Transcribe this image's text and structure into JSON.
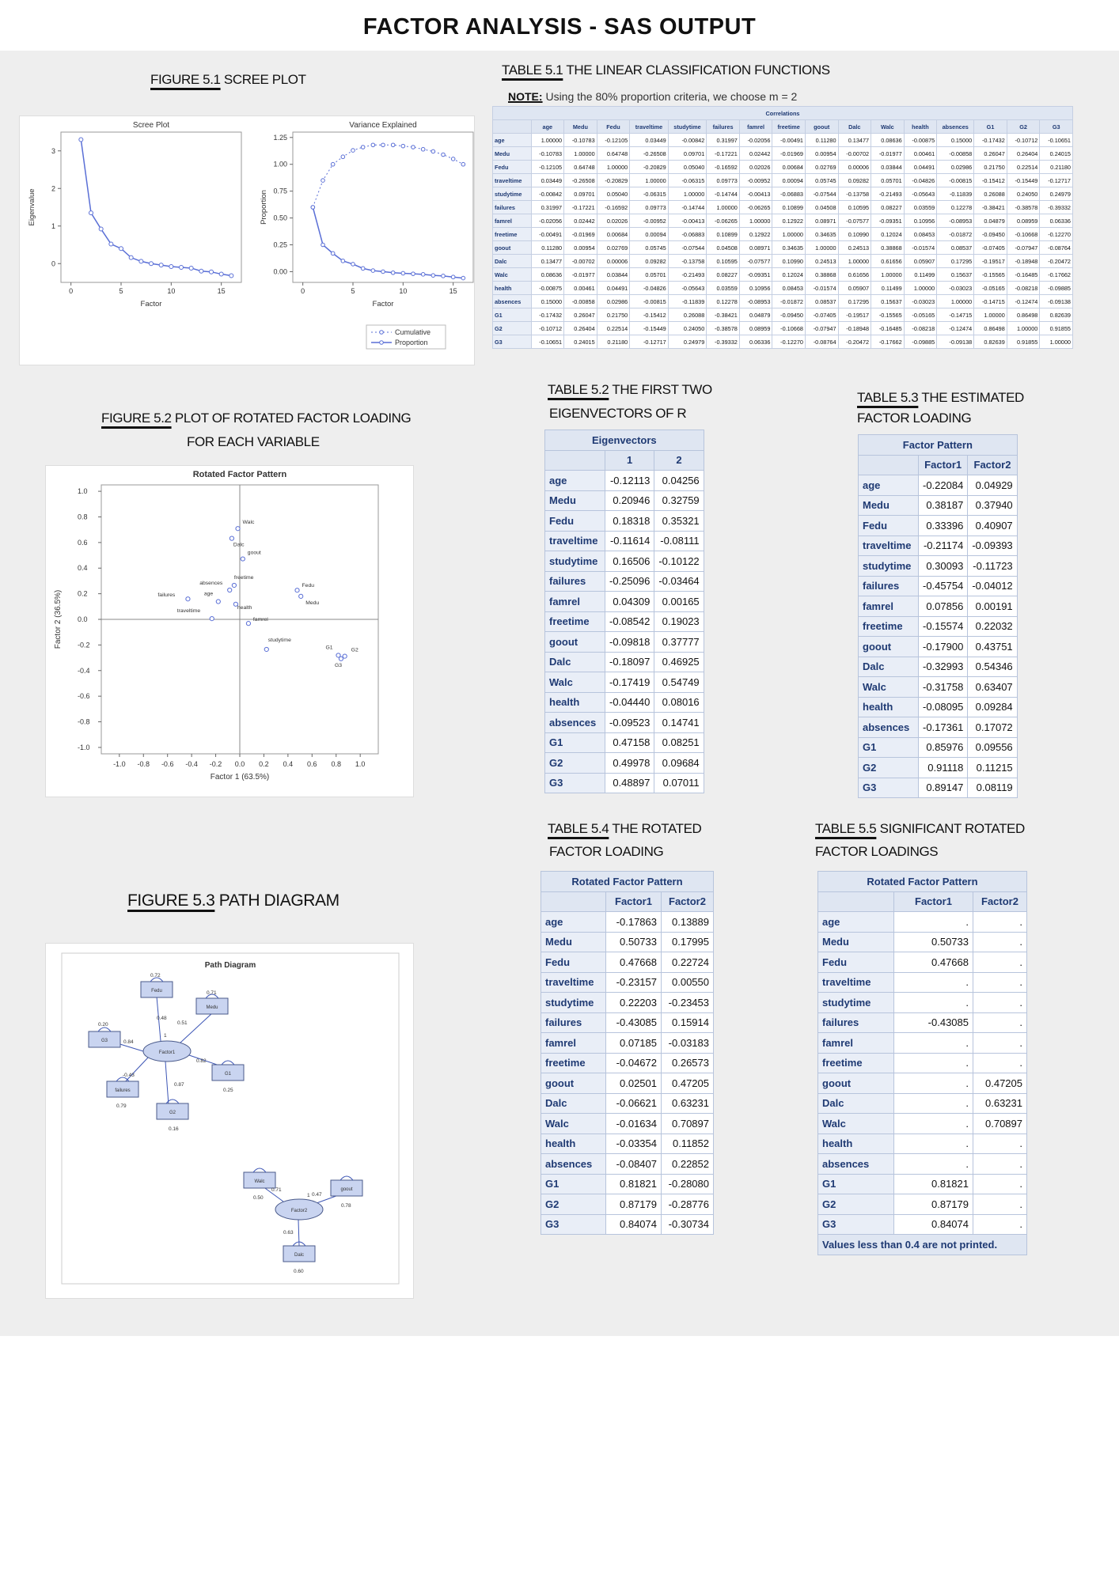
{
  "page_title": "FACTOR ANALYSIS  - SAS OUTPUT",
  "captions": {
    "fig51_num": "FIGURE  5.1",
    "fig51_text": " SCREE PLOT",
    "t51_num": "TABLE 5.1",
    "t51_text": " THE LINEAR CLASSIFICATION FUNCTIONS",
    "note_label": "NOTE:",
    "note_text": " Using the 80% proportion criteria, we choose m = 2",
    "t52_num": "TABLE 5.2",
    "t52_text": "  THE FIRST TWO",
    "t52_line2": "EIGENVECTORS OF R",
    "t53_num": "TABLE 5.3",
    "t53_text": "   THE ESTIMATED",
    "t53_line2": "FACTOR LOADING",
    "fig52_num": "FIGURE  5.2",
    "fig52_text": "  PLOT OF ROTATED FACTOR LOADING",
    "fig52_line2": "FOR EACH VARIABLE",
    "t54_num": "TABLE 5.4",
    "t54_text": "  THE  ROTATED",
    "t54_line2": "FACTOR LOADING",
    "t55_num": "TABLE 5.5",
    "t55_text": " SIGNIFICANT ROTATED",
    "t55_line2": "FACTOR LOADINGS",
    "fig53_num": "FIGURE  5.3",
    "fig53_text": " PATH DIAGRAM"
  },
  "variables": [
    "age",
    "Medu",
    "Fedu",
    "traveltime",
    "studytime",
    "failures",
    "famrel",
    "freetime",
    "goout",
    "Dalc",
    "Walc",
    "health",
    "absences",
    "G1",
    "G2",
    "G3"
  ],
  "correlations": {
    "title": "Correlations",
    "rows": [
      [
        "1.00000",
        "-0.10783",
        "-0.12105",
        "0.03449",
        "-0.00842",
        "0.31997",
        "-0.02056",
        "-0.00491",
        "0.11280",
        "0.13477",
        "0.08636",
        "-0.00875",
        "0.15000",
        "-0.17432",
        "-0.10712",
        "-0.10651"
      ],
      [
        "-0.10783",
        "1.00000",
        "0.64748",
        "-0.26508",
        "0.09701",
        "-0.17221",
        "0.02442",
        "-0.01969",
        "0.00954",
        "-0.00702",
        "-0.01977",
        "0.00461",
        "-0.00858",
        "0.26047",
        "0.26404",
        "0.24015"
      ],
      [
        "-0.12105",
        "0.64748",
        "1.00000",
        "-0.20829",
        "0.05040",
        "-0.16592",
        "0.02026",
        "0.00684",
        "0.02769",
        "0.00006",
        "0.03844",
        "0.04491",
        "0.02986",
        "0.21750",
        "0.22514",
        "0.21180"
      ],
      [
        "0.03449",
        "-0.26508",
        "-0.20829",
        "1.00000",
        "-0.06315",
        "0.09773",
        "-0.00952",
        "0.00094",
        "0.05745",
        "0.09282",
        "0.05701",
        "-0.04826",
        "-0.00815",
        "-0.15412",
        "-0.15449",
        "-0.12717"
      ],
      [
        "-0.00842",
        "0.09701",
        "0.05040",
        "-0.06315",
        "1.00000",
        "-0.14744",
        "-0.00413",
        "-0.06883",
        "-0.07544",
        "-0.13758",
        "-0.21493",
        "-0.05643",
        "-0.11839",
        "0.26088",
        "0.24050",
        "0.24979"
      ],
      [
        "0.31997",
        "-0.17221",
        "-0.16592",
        "0.09773",
        "-0.14744",
        "1.00000",
        "-0.06265",
        "0.10899",
        "0.04508",
        "0.10595",
        "0.08227",
        "0.03559",
        "0.12278",
        "-0.38421",
        "-0.38578",
        "-0.39332"
      ],
      [
        "-0.02056",
        "0.02442",
        "0.02026",
        "-0.00952",
        "-0.00413",
        "-0.06265",
        "1.00000",
        "0.12922",
        "0.08971",
        "-0.07577",
        "-0.09351",
        "0.10956",
        "-0.08953",
        "0.04879",
        "0.08959",
        "0.06336"
      ],
      [
        "-0.00491",
        "-0.01969",
        "0.00684",
        "0.00094",
        "-0.06883",
        "0.10899",
        "0.12922",
        "1.00000",
        "0.34635",
        "0.10990",
        "0.12024",
        "0.08453",
        "-0.01872",
        "-0.09450",
        "-0.10668",
        "-0.12270"
      ],
      [
        "0.11280",
        "0.00954",
        "0.02769",
        "0.05745",
        "-0.07544",
        "0.04508",
        "0.08971",
        "0.34635",
        "1.00000",
        "0.24513",
        "0.38868",
        "-0.01574",
        "0.08537",
        "-0.07405",
        "-0.07947",
        "-0.08764"
      ],
      [
        "0.13477",
        "-0.00702",
        "0.00006",
        "0.09282",
        "-0.13758",
        "0.10595",
        "-0.07577",
        "0.10990",
        "0.24513",
        "1.00000",
        "0.61656",
        "0.05907",
        "0.17295",
        "-0.19517",
        "-0.18948",
        "-0.20472"
      ],
      [
        "0.08636",
        "-0.01977",
        "0.03844",
        "0.05701",
        "-0.21493",
        "0.08227",
        "-0.09351",
        "0.12024",
        "0.38868",
        "0.61656",
        "1.00000",
        "0.11499",
        "0.15637",
        "-0.15565",
        "-0.16485",
        "-0.17662"
      ],
      [
        "-0.00875",
        "0.00461",
        "0.04491",
        "-0.04826",
        "-0.05643",
        "0.03559",
        "0.10956",
        "0.08453",
        "-0.01574",
        "0.05907",
        "0.11499",
        "1.00000",
        "-0.03023",
        "-0.05165",
        "-0.08218",
        "-0.09885"
      ],
      [
        "0.15000",
        "-0.00858",
        "0.02986",
        "-0.00815",
        "-0.11839",
        "0.12278",
        "-0.08953",
        "-0.01872",
        "0.08537",
        "0.17295",
        "0.15637",
        "-0.03023",
        "1.00000",
        "-0.14715",
        "-0.12474",
        "-0.09138"
      ],
      [
        "-0.17432",
        "0.26047",
        "0.21750",
        "-0.15412",
        "0.26088",
        "-0.38421",
        "0.04879",
        "-0.09450",
        "-0.07405",
        "-0.19517",
        "-0.15565",
        "-0.05165",
        "-0.14715",
        "1.00000",
        "0.86498",
        "0.82639"
      ],
      [
        "-0.10712",
        "0.26404",
        "0.22514",
        "-0.15449",
        "0.24050",
        "-0.38578",
        "0.08959",
        "-0.10668",
        "-0.07947",
        "-0.18948",
        "-0.16485",
        "-0.08218",
        "-0.12474",
        "0.86498",
        "1.00000",
        "0.91855"
      ],
      [
        "-0.10651",
        "0.24015",
        "0.21180",
        "-0.12717",
        "0.24979",
        "-0.39332",
        "0.06336",
        "-0.12270",
        "-0.08764",
        "-0.20472",
        "-0.17662",
        "-0.09885",
        "-0.09138",
        "0.82639",
        "0.91855",
        "1.00000"
      ]
    ]
  },
  "eigenvectors": {
    "title": "Eigenvectors",
    "cols": [
      "1",
      "2"
    ],
    "rows": [
      [
        "-0.12113",
        "0.04256"
      ],
      [
        "0.20946",
        "0.32759"
      ],
      [
        "0.18318",
        "0.35321"
      ],
      [
        "-0.11614",
        "-0.08111"
      ],
      [
        "0.16506",
        "-0.10122"
      ],
      [
        "-0.25096",
        "-0.03464"
      ],
      [
        "0.04309",
        "0.00165"
      ],
      [
        "-0.08542",
        "0.19023"
      ],
      [
        "-0.09818",
        "0.37777"
      ],
      [
        "-0.18097",
        "0.46925"
      ],
      [
        "-0.17419",
        "0.54749"
      ],
      [
        "-0.04440",
        "0.08016"
      ],
      [
        "-0.09523",
        "0.14741"
      ],
      [
        "0.47158",
        "0.08251"
      ],
      [
        "0.49978",
        "0.09684"
      ],
      [
        "0.48897",
        "0.07011"
      ]
    ]
  },
  "factor_pattern": {
    "title": "Factor Pattern",
    "cols": [
      "Factor1",
      "Factor2"
    ],
    "rows": [
      [
        "-0.22084",
        "0.04929"
      ],
      [
        "0.38187",
        "0.37940"
      ],
      [
        "0.33396",
        "0.40907"
      ],
      [
        "-0.21174",
        "-0.09393"
      ],
      [
        "0.30093",
        "-0.11723"
      ],
      [
        "-0.45754",
        "-0.04012"
      ],
      [
        "0.07856",
        "0.00191"
      ],
      [
        "-0.15574",
        "0.22032"
      ],
      [
        "-0.17900",
        "0.43751"
      ],
      [
        "-0.32993",
        "0.54346"
      ],
      [
        "-0.31758",
        "0.63407"
      ],
      [
        "-0.08095",
        "0.09284"
      ],
      [
        "-0.17361",
        "0.17072"
      ],
      [
        "0.85976",
        "0.09556"
      ],
      [
        "0.91118",
        "0.11215"
      ],
      [
        "0.89147",
        "0.08119"
      ]
    ]
  },
  "rotated_pattern": {
    "title": "Rotated Factor Pattern",
    "cols": [
      "Factor1",
      "Factor2"
    ],
    "rows": [
      [
        "-0.17863",
        "0.13889"
      ],
      [
        "0.50733",
        "0.17995"
      ],
      [
        "0.47668",
        "0.22724"
      ],
      [
        "-0.23157",
        "0.00550"
      ],
      [
        "0.22203",
        "-0.23453"
      ],
      [
        "-0.43085",
        "0.15914"
      ],
      [
        "0.07185",
        "-0.03183"
      ],
      [
        "-0.04672",
        "0.26573"
      ],
      [
        "0.02501",
        "0.47205"
      ],
      [
        "-0.06621",
        "0.63231"
      ],
      [
        "-0.01634",
        "0.70897"
      ],
      [
        "-0.03354",
        "0.11852"
      ],
      [
        "-0.08407",
        "0.22852"
      ],
      [
        "0.81821",
        "-0.28080"
      ],
      [
        "0.87179",
        "-0.28776"
      ],
      [
        "0.84074",
        "-0.30734"
      ]
    ]
  },
  "significant_pattern": {
    "title": "Rotated Factor Pattern",
    "cols": [
      "Factor1",
      "Factor2"
    ],
    "rows": [
      [
        ".",
        "."
      ],
      [
        "0.50733",
        "."
      ],
      [
        "0.47668",
        "."
      ],
      [
        ".",
        "."
      ],
      [
        ".",
        "."
      ],
      [
        "-0.43085",
        "."
      ],
      [
        ".",
        "."
      ],
      [
        ".",
        "."
      ],
      [
        ".",
        "0.47205"
      ],
      [
        ".",
        "0.63231"
      ],
      [
        ".",
        "0.70897"
      ],
      [
        ".",
        "."
      ],
      [
        ".",
        "."
      ],
      [
        "0.81821",
        "."
      ],
      [
        "0.87179",
        "."
      ],
      [
        "0.84074",
        "."
      ]
    ],
    "footer": "Values less than 0.4 are not printed."
  },
  "chart_data": [
    {
      "type": "line",
      "title": "Scree Plot",
      "xlabel": "Factor",
      "ylabel": "Eigenvalue",
      "x": [
        1,
        2,
        3,
        4,
        5,
        6,
        7,
        8,
        9,
        10,
        11,
        12,
        13,
        14,
        15,
        16
      ],
      "series": [
        {
          "values": [
            3.3,
            1.35,
            0.92,
            0.52,
            0.4,
            0.16,
            0.06,
            0.0,
            -0.04,
            -0.08,
            -0.1,
            -0.12,
            -0.2,
            -0.22,
            -0.28,
            -0.32
          ]
        }
      ],
      "xlim": [
        -1,
        17
      ],
      "ylim": [
        -0.5,
        3.5
      ],
      "xticks": [
        "0",
        "5",
        "10",
        "15"
      ],
      "yticks": [
        "0",
        "1",
        "2",
        "3"
      ]
    },
    {
      "type": "line",
      "title": "Variance Explained",
      "xlabel": "Factor",
      "ylabel": "Proportion",
      "x": [
        1,
        2,
        3,
        4,
        5,
        6,
        7,
        8,
        9,
        10,
        11,
        12,
        13,
        14,
        15,
        16
      ],
      "series": [
        {
          "name": "Cumulative",
          "values": [
            0.6,
            0.85,
            1.0,
            1.07,
            1.13,
            1.16,
            1.18,
            1.18,
            1.18,
            1.17,
            1.16,
            1.14,
            1.12,
            1.09,
            1.05,
            1.0
          ]
        },
        {
          "name": "Proportion",
          "values": [
            0.6,
            0.25,
            0.17,
            0.1,
            0.07,
            0.03,
            0.01,
            0.0,
            -0.01,
            -0.015,
            -0.02,
            -0.025,
            -0.035,
            -0.04,
            -0.05,
            -0.06
          ]
        }
      ],
      "xlim": [
        -1,
        17
      ],
      "ylim": [
        -0.1,
        1.3
      ],
      "xticks": [
        "0",
        "5",
        "10",
        "15"
      ],
      "yticks": [
        "0.00",
        "0.25",
        "0.50",
        "0.75",
        "1.00",
        "1.25"
      ],
      "legend": "bottom-right"
    },
    {
      "type": "scatter",
      "title": "Rotated Factor Pattern",
      "xlabel": "Factor 1 (63.5%)",
      "ylabel": "Factor 2 (36.5%)",
      "xlim": [
        -1.15,
        1.15
      ],
      "ylim": [
        -1.05,
        1.05
      ],
      "xticks": [
        "-1.0",
        "-0.8",
        "-0.6",
        "-0.4",
        "-0.2",
        "0.0",
        "0.2",
        "0.4",
        "0.6",
        "0.8",
        "1.0"
      ],
      "yticks": [
        "1.0",
        "0.8",
        "0.6",
        "0.4",
        "0.2",
        "0.0",
        "-0.2",
        "-0.4",
        "-0.6",
        "-0.8",
        "-1.0"
      ],
      "points": [
        {
          "label": "age",
          "x": -0.17863,
          "y": 0.13889
        },
        {
          "label": "Medu",
          "x": 0.50733,
          "y": 0.17995
        },
        {
          "label": "Fedu",
          "x": 0.47668,
          "y": 0.22724
        },
        {
          "label": "traveltime",
          "x": -0.23157,
          "y": 0.0055
        },
        {
          "label": "studytime",
          "x": 0.22203,
          "y": -0.23453
        },
        {
          "label": "failures",
          "x": -0.43085,
          "y": 0.15914
        },
        {
          "label": "famrel",
          "x": 0.07185,
          "y": -0.03183
        },
        {
          "label": "freetime",
          "x": -0.04672,
          "y": 0.26573
        },
        {
          "label": "goout",
          "x": 0.02501,
          "y": 0.47205
        },
        {
          "label": "Dalc",
          "x": -0.06621,
          "y": 0.63231
        },
        {
          "label": "Walc",
          "x": -0.01634,
          "y": 0.70897
        },
        {
          "label": "health",
          "x": -0.03354,
          "y": 0.11852
        },
        {
          "label": "absences",
          "x": -0.08407,
          "y": 0.22852
        },
        {
          "label": "G1",
          "x": 0.81821,
          "y": -0.2808
        },
        {
          "label": "G2",
          "x": 0.87179,
          "y": -0.28776
        },
        {
          "label": "G3",
          "x": 0.84074,
          "y": -0.30734
        }
      ]
    }
  ],
  "path_diagram": {
    "title": "Path Diagram",
    "factor1": "Factor1",
    "factor2": "Factor2",
    "nodes": {
      "Fedu": "Fedu",
      "Medu": "Medu",
      "G3": "G3",
      "G1": "G1",
      "failures": "failures",
      "G2": "G2",
      "Walc": "Walc",
      "goout": "goout",
      "Dalc": "Dalc"
    },
    "labels": {
      "fedu_err": "0.72",
      "medu_err": "0.71",
      "g3_err": "0.20",
      "fedu_load": "0.48",
      "medu_load": "0.51",
      "f1_var": "1",
      "g3_load": "0.84",
      "g1_load": "0.82",
      "g1_err": "0.25",
      "fail_load": "-0.43",
      "g2_load": "0.87",
      "fail_err": "0.79",
      "g2_err": "0.16",
      "walc_load": "0.71",
      "walc_err": "0.50",
      "goout_load": "0.47",
      "goout_err": "0.78",
      "dalc_load": "0.63",
      "dalc_err": "0.60",
      "f2_var": "1"
    }
  }
}
